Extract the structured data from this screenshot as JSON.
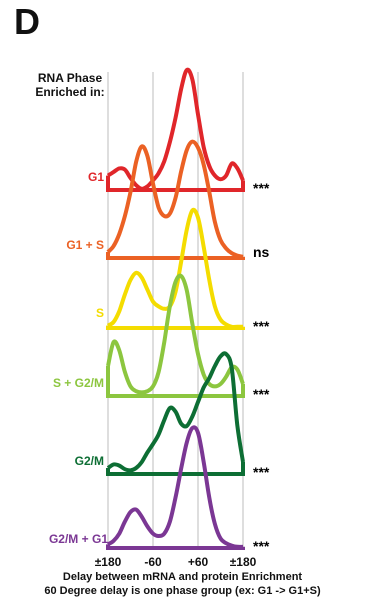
{
  "panel_letter": "D",
  "header_label": "RNA Phase Enriched in:",
  "footer": {
    "line1": "Delay between mRNA and protein Enrichment",
    "line2": "60 Degree delay is one phase group (ex: G1 -> G1+S)"
  },
  "chart_data": {
    "type": "area",
    "x_ticks": [
      "±180",
      "-60",
      "+60",
      "±180"
    ],
    "x_tick_values": [
      -180,
      -60,
      60,
      180
    ],
    "xlim": [
      -180,
      180
    ],
    "grid_x": [
      -60,
      60
    ],
    "series": [
      {
        "name": "G1",
        "significance": "***",
        "color": "#e0262a",
        "x": [
          -180,
          -165,
          -150,
          -135,
          -120,
          -105,
          -90,
          -75,
          -60,
          -45,
          -30,
          -15,
          0,
          15,
          30,
          45,
          60,
          75,
          90,
          105,
          120,
          135,
          150,
          165,
          180
        ],
        "y": [
          0.12,
          0.15,
          0.18,
          0.17,
          0.1,
          0.04,
          0.01,
          0.03,
          0.08,
          0.14,
          0.24,
          0.4,
          0.6,
          0.84,
          1.0,
          0.92,
          0.63,
          0.36,
          0.2,
          0.12,
          0.09,
          0.12,
          0.22,
          0.18,
          0.08
        ]
      },
      {
        "name": "G1 + S",
        "significance": "ns",
        "color": "#eb6124",
        "x": [
          -180,
          -165,
          -150,
          -135,
          -120,
          -105,
          -90,
          -75,
          -60,
          -45,
          -30,
          -15,
          0,
          15,
          30,
          45,
          60,
          75,
          90,
          105,
          120,
          135,
          150,
          165,
          180
        ],
        "y": [
          0.05,
          0.1,
          0.2,
          0.35,
          0.55,
          0.8,
          0.93,
          0.85,
          0.62,
          0.42,
          0.35,
          0.37,
          0.5,
          0.72,
          0.9,
          0.97,
          0.92,
          0.78,
          0.55,
          0.3,
          0.15,
          0.08,
          0.04,
          0.02,
          0.01
        ]
      },
      {
        "name": "S",
        "significance": "***",
        "color": "#f4dc00",
        "x": [
          -180,
          -165,
          -150,
          -135,
          -120,
          -105,
          -90,
          -75,
          -60,
          -45,
          -30,
          -15,
          0,
          15,
          30,
          45,
          60,
          75,
          90,
          105,
          120,
          135,
          150,
          165,
          180
        ],
        "y": [
          0.02,
          0.05,
          0.14,
          0.28,
          0.4,
          0.46,
          0.42,
          0.32,
          0.22,
          0.18,
          0.16,
          0.18,
          0.3,
          0.55,
          0.82,
          0.98,
          0.92,
          0.68,
          0.4,
          0.18,
          0.07,
          0.03,
          0.01,
          0.01,
          0.01
        ]
      },
      {
        "name": "S + G2/M",
        "significance": "***",
        "color": "#8cc63f",
        "x": [
          -180,
          -165,
          -150,
          -135,
          -120,
          -105,
          -90,
          -75,
          -60,
          -45,
          -30,
          -15,
          0,
          15,
          30,
          45,
          60,
          75,
          90,
          105,
          120,
          135,
          150,
          165,
          180
        ],
        "y": [
          0.25,
          0.45,
          0.38,
          0.2,
          0.08,
          0.04,
          0.03,
          0.04,
          0.08,
          0.2,
          0.45,
          0.75,
          0.95,
          1.0,
          0.88,
          0.6,
          0.35,
          0.18,
          0.1,
          0.08,
          0.1,
          0.16,
          0.24,
          0.22,
          0.1
        ]
      },
      {
        "name": "G2/M",
        "significance": "***",
        "color": "#0d6e34",
        "x": [
          -180,
          -165,
          -150,
          -135,
          -120,
          -105,
          -90,
          -75,
          -60,
          -45,
          -30,
          -15,
          0,
          15,
          30,
          45,
          60,
          75,
          90,
          105,
          120,
          135,
          150,
          165,
          180
        ],
        "y": [
          0.05,
          0.08,
          0.07,
          0.04,
          0.03,
          0.05,
          0.1,
          0.18,
          0.25,
          0.33,
          0.45,
          0.55,
          0.52,
          0.42,
          0.4,
          0.48,
          0.6,
          0.72,
          0.8,
          0.9,
          0.98,
          1.0,
          0.88,
          0.4,
          0.1
        ]
      },
      {
        "name": "G2/M + G1",
        "significance": "***",
        "color": "#7b3794",
        "x": [
          -180,
          -165,
          -150,
          -135,
          -120,
          -105,
          -90,
          -75,
          -60,
          -45,
          -30,
          -15,
          0,
          15,
          30,
          45,
          60,
          75,
          90,
          105,
          120,
          135,
          150,
          165,
          180
        ],
        "y": [
          0.03,
          0.06,
          0.12,
          0.22,
          0.3,
          0.32,
          0.26,
          0.18,
          0.12,
          0.1,
          0.12,
          0.22,
          0.42,
          0.66,
          0.88,
          1.0,
          0.96,
          0.72,
          0.42,
          0.2,
          0.08,
          0.04,
          0.02,
          0.01,
          0.01
        ]
      }
    ]
  }
}
